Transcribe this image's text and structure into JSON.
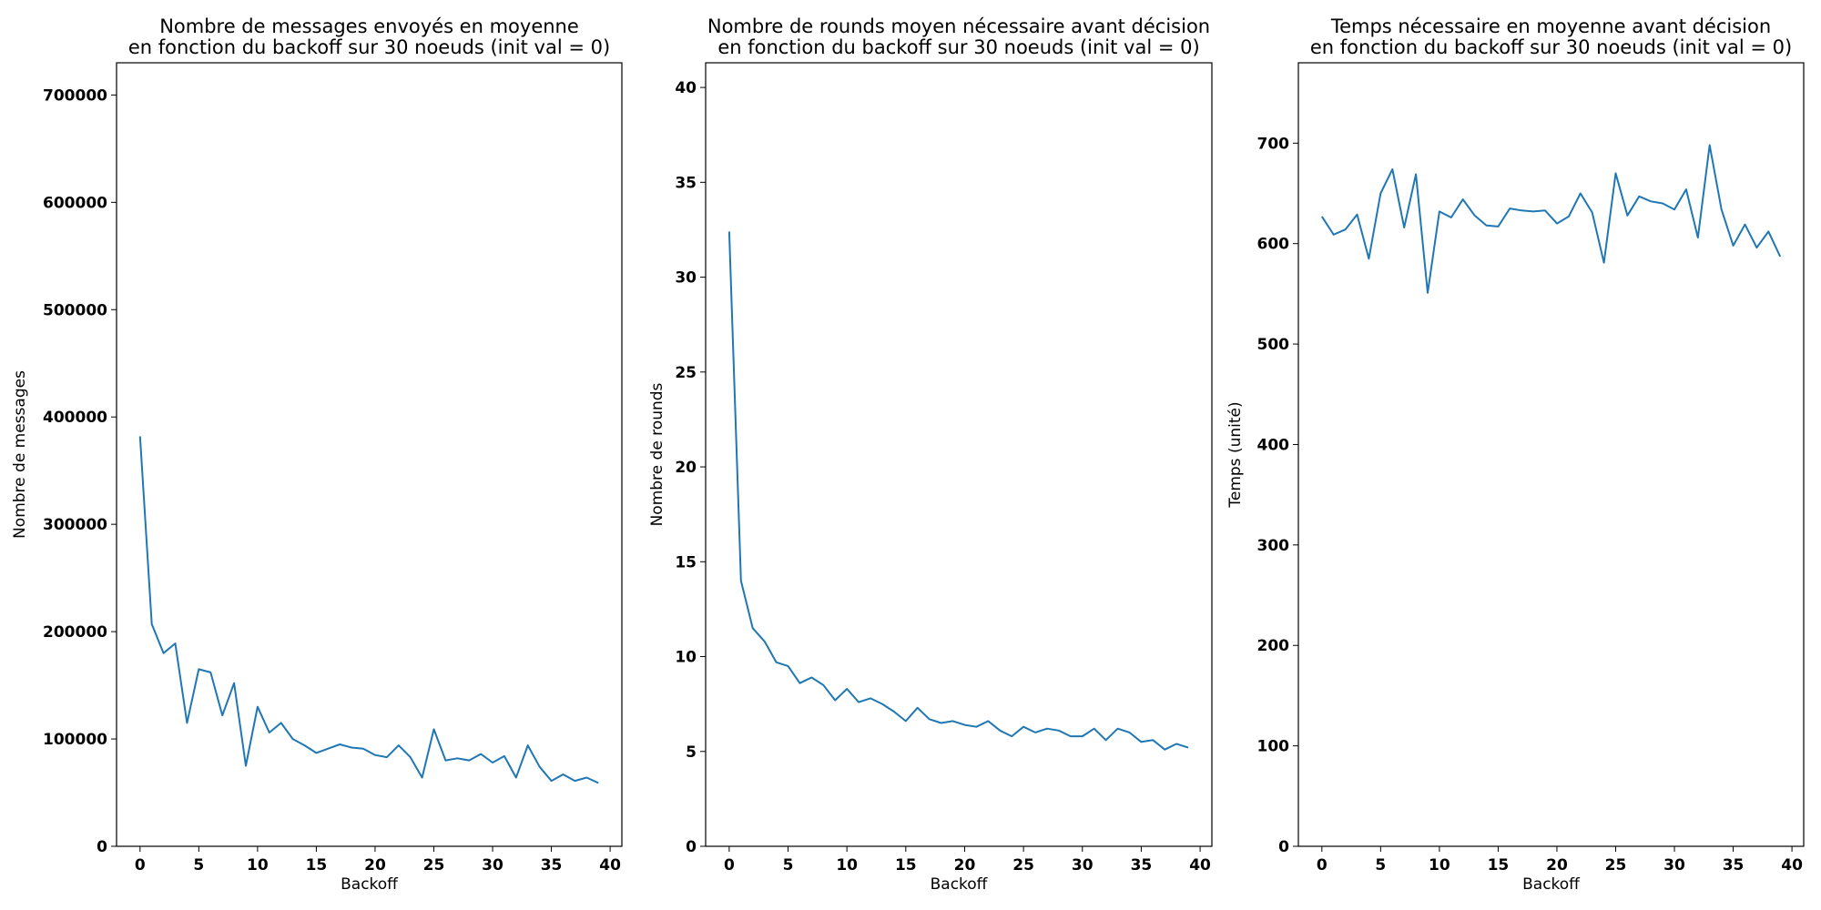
{
  "chart_data": [
    {
      "type": "line",
      "title": [
        "Nombre de messages envoyés en moyenne",
        "en fonction du backoff sur 30 noeuds (init val = 0)"
      ],
      "xlabel": "Backoff",
      "ylabel": "Nombre de messages",
      "xlim": [
        -2,
        41
      ],
      "ylim": [
        0,
        730000
      ],
      "xticks": [
        0,
        5,
        10,
        15,
        20,
        25,
        30,
        35,
        40
      ],
      "yticks": [
        0,
        100000,
        200000,
        300000,
        400000,
        500000,
        600000,
        700000
      ],
      "grid": false,
      "color": "#1f77b4",
      "x": [
        0,
        1,
        2,
        3,
        4,
        5,
        6,
        7,
        8,
        9,
        10,
        11,
        12,
        13,
        14,
        15,
        16,
        17,
        18,
        19,
        20,
        21,
        22,
        23,
        24,
        25,
        26,
        27,
        28,
        29,
        30,
        31,
        32,
        33,
        34,
        35,
        36,
        37,
        38,
        39
      ],
      "y": [
        382000,
        207000,
        180000,
        189000,
        115000,
        165000,
        162000,
        122000,
        152000,
        75000,
        130000,
        106000,
        115000,
        100000,
        94000,
        87000,
        91000,
        95000,
        92000,
        91000,
        85000,
        83000,
        94000,
        83000,
        64000,
        109000,
        80000,
        82000,
        80000,
        86000,
        78000,
        84000,
        64000,
        94000,
        74000,
        61000,
        67000,
        61000,
        64000,
        59000
      ]
    },
    {
      "type": "line",
      "title": [
        "Nombre de rounds moyen nécessaire avant décision",
        "en fonction du backoff sur 30 noeuds (init val = 0)"
      ],
      "xlabel": "Backoff",
      "ylabel": "Nombre de rounds",
      "xlim": [
        -2,
        41
      ],
      "ylim": [
        0,
        41.3
      ],
      "xticks": [
        0,
        5,
        10,
        15,
        20,
        25,
        30,
        35,
        40
      ],
      "yticks": [
        0,
        5,
        10,
        15,
        20,
        25,
        30,
        35,
        40
      ],
      "grid": false,
      "color": "#1f77b4",
      "x": [
        0,
        1,
        2,
        3,
        4,
        5,
        6,
        7,
        8,
        9,
        10,
        11,
        12,
        13,
        14,
        15,
        16,
        17,
        18,
        19,
        20,
        21,
        22,
        23,
        24,
        25,
        26,
        27,
        28,
        29,
        30,
        31,
        32,
        33,
        34,
        35,
        36,
        37,
        38,
        39
      ],
      "y": [
        32.4,
        14.0,
        11.5,
        10.8,
        9.7,
        9.5,
        8.6,
        8.9,
        8.5,
        7.7,
        8.3,
        7.6,
        7.8,
        7.5,
        7.1,
        6.6,
        7.3,
        6.7,
        6.5,
        6.6,
        6.4,
        6.3,
        6.6,
        6.1,
        5.8,
        6.3,
        6.0,
        6.2,
        6.1,
        5.8,
        5.8,
        6.2,
        5.6,
        6.2,
        6.0,
        5.5,
        5.6,
        5.1,
        5.4,
        5.2
      ]
    },
    {
      "type": "line",
      "title": [
        "Temps nécessaire en moyenne avant décision",
        "en fonction du backoff sur 30 noeuds (init val = 0)"
      ],
      "xlabel": "Backoff",
      "ylabel": "Temps (unité)",
      "xlim": [
        -2,
        41
      ],
      "ylim": [
        0,
        780
      ],
      "xticks": [
        0,
        5,
        10,
        15,
        20,
        25,
        30,
        35,
        40
      ],
      "yticks": [
        0,
        100,
        200,
        300,
        400,
        500,
        600,
        700
      ],
      "grid": false,
      "color": "#1f77b4",
      "x": [
        0,
        1,
        2,
        3,
        4,
        5,
        6,
        7,
        8,
        9,
        10,
        11,
        12,
        13,
        14,
        15,
        16,
        17,
        18,
        19,
        20,
        21,
        22,
        23,
        24,
        25,
        26,
        27,
        28,
        29,
        30,
        31,
        32,
        33,
        34,
        35,
        36,
        37,
        38,
        39
      ],
      "y": [
        627,
        609,
        614,
        629,
        585,
        650,
        674,
        616,
        669,
        551,
        632,
        626,
        644,
        628,
        618,
        617,
        635,
        633,
        632,
        633,
        620,
        627,
        650,
        631,
        581,
        670,
        628,
        647,
        642,
        640,
        634,
        654,
        606,
        698,
        634,
        598,
        619,
        596,
        612,
        587
      ]
    }
  ]
}
